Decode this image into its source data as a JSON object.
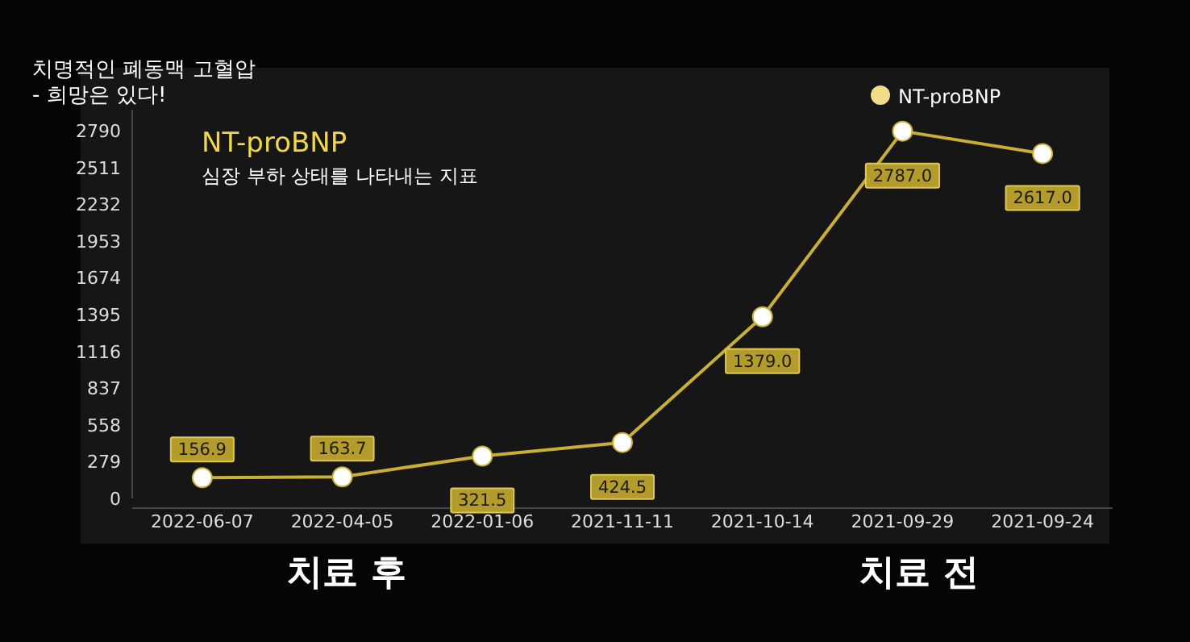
{
  "chart_data": {
    "type": "line",
    "title": "NT-proBNP",
    "subtitle": "심장 부하 상태를 나타내는 지표",
    "categories": [
      "2022-06-07",
      "2022-04-05",
      "2022-01-06",
      "2021-11-11",
      "2021-10-14",
      "2021-09-29",
      "2021-09-24"
    ],
    "series": [
      {
        "name": "NT-proBNP",
        "color": "#c9b035",
        "values": [
          156.9,
          163.7,
          321.5,
          424.5,
          1379.0,
          2787.0,
          2617.0
        ],
        "value_labels": [
          "156.9",
          "163.7",
          "321.5",
          "424.5",
          "1379.0",
          "2787.0",
          "2617.0"
        ]
      }
    ],
    "ylim": [
      0,
      2950
    ],
    "yticks": [
      0,
      279,
      558,
      837,
      1116,
      1395,
      1674,
      1953,
      2232,
      2511,
      2790
    ],
    "marker": "circle",
    "legend": "top right",
    "grid": false,
    "annotations": [
      "치명적인 폐동맥 고혈압",
      "- 희망은 있다!",
      "치료 후",
      "치료 전"
    ]
  }
}
